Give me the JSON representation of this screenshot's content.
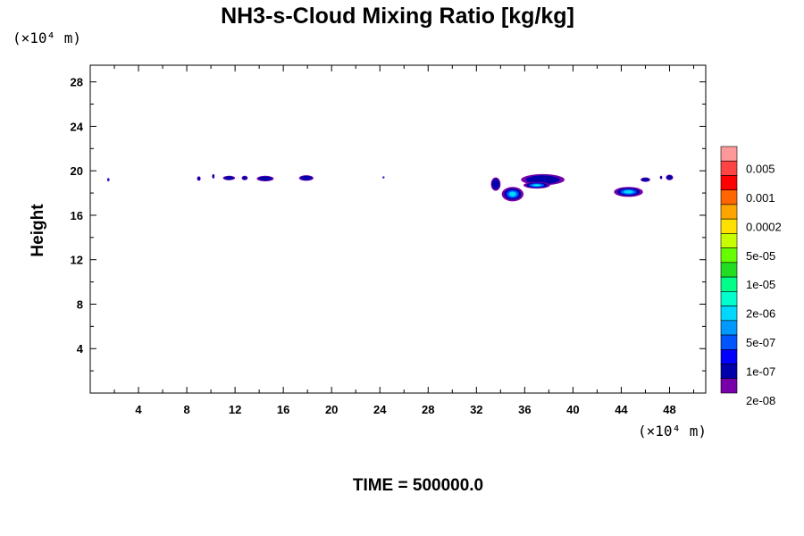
{
  "chart_data": {
    "type": "heatmap",
    "title": "NH3-s-Cloud Mixing Ratio [kg/kg]",
    "ylabel": "Height",
    "x_unit": "(×10⁴ m)",
    "y_unit": "(×10⁴ m)",
    "xlim": [
      0,
      51
    ],
    "ylim": [
      0,
      29.5
    ],
    "x_ticks": [
      4,
      8,
      12,
      16,
      20,
      24,
      28,
      32,
      36,
      40,
      44,
      48
    ],
    "y_ticks": [
      4,
      8,
      12,
      16,
      20,
      24,
      28
    ],
    "footer": "TIME = 500000.0",
    "colorbar": {
      "labels": [
        "0.005",
        "0.001",
        "0.0002",
        "5e-05",
        "1e-05",
        "2e-06",
        "5e-07",
        "1e-07",
        "2e-08"
      ],
      "colors": [
        "#ff9999",
        "#ff4444",
        "#ff0000",
        "#ff6600",
        "#ffa500",
        "#ffe000",
        "#c8ff00",
        "#66ff00",
        "#22dd22",
        "#00ff88",
        "#00ffcc",
        "#00d8ff",
        "#0099ff",
        "#0055ff",
        "#0000ff",
        "#0000aa",
        "#7700aa"
      ]
    },
    "clouds": [
      {
        "x": 1.5,
        "y": 19.2,
        "w": 0.2,
        "h": 0.3,
        "level": 2
      },
      {
        "x": 9.0,
        "y": 19.3,
        "w": 0.3,
        "h": 0.4,
        "level": 1
      },
      {
        "x": 10.2,
        "y": 19.5,
        "w": 0.2,
        "h": 0.4,
        "level": 1
      },
      {
        "x": 11.5,
        "y": 19.35,
        "w": 1.0,
        "h": 0.4,
        "level": 1
      },
      {
        "x": 12.8,
        "y": 19.35,
        "w": 0.5,
        "h": 0.4,
        "level": 1
      },
      {
        "x": 14.5,
        "y": 19.3,
        "w": 1.4,
        "h": 0.5,
        "level": 1
      },
      {
        "x": 17.9,
        "y": 19.35,
        "w": 1.2,
        "h": 0.5,
        "level": 1
      },
      {
        "x": 24.3,
        "y": 19.4,
        "w": 0.15,
        "h": 0.2,
        "level": 2
      },
      {
        "x": 33.6,
        "y": 18.8,
        "w": 0.8,
        "h": 1.2,
        "level": 1
      },
      {
        "x": 35.0,
        "y": 17.9,
        "w": 1.8,
        "h": 1.3,
        "level": 3
      },
      {
        "x": 37.5,
        "y": 19.2,
        "w": 3.6,
        "h": 1.0,
        "level": 1
      },
      {
        "x": 37.0,
        "y": 18.7,
        "w": 2.2,
        "h": 0.6,
        "level": 4
      },
      {
        "x": 44.6,
        "y": 18.1,
        "w": 2.4,
        "h": 0.9,
        "level": 3
      },
      {
        "x": 46.0,
        "y": 19.2,
        "w": 0.8,
        "h": 0.4,
        "level": 1
      },
      {
        "x": 47.3,
        "y": 19.4,
        "w": 0.2,
        "h": 0.3,
        "level": 1
      },
      {
        "x": 48.0,
        "y": 19.4,
        "w": 0.6,
        "h": 0.5,
        "level": 1
      }
    ]
  }
}
